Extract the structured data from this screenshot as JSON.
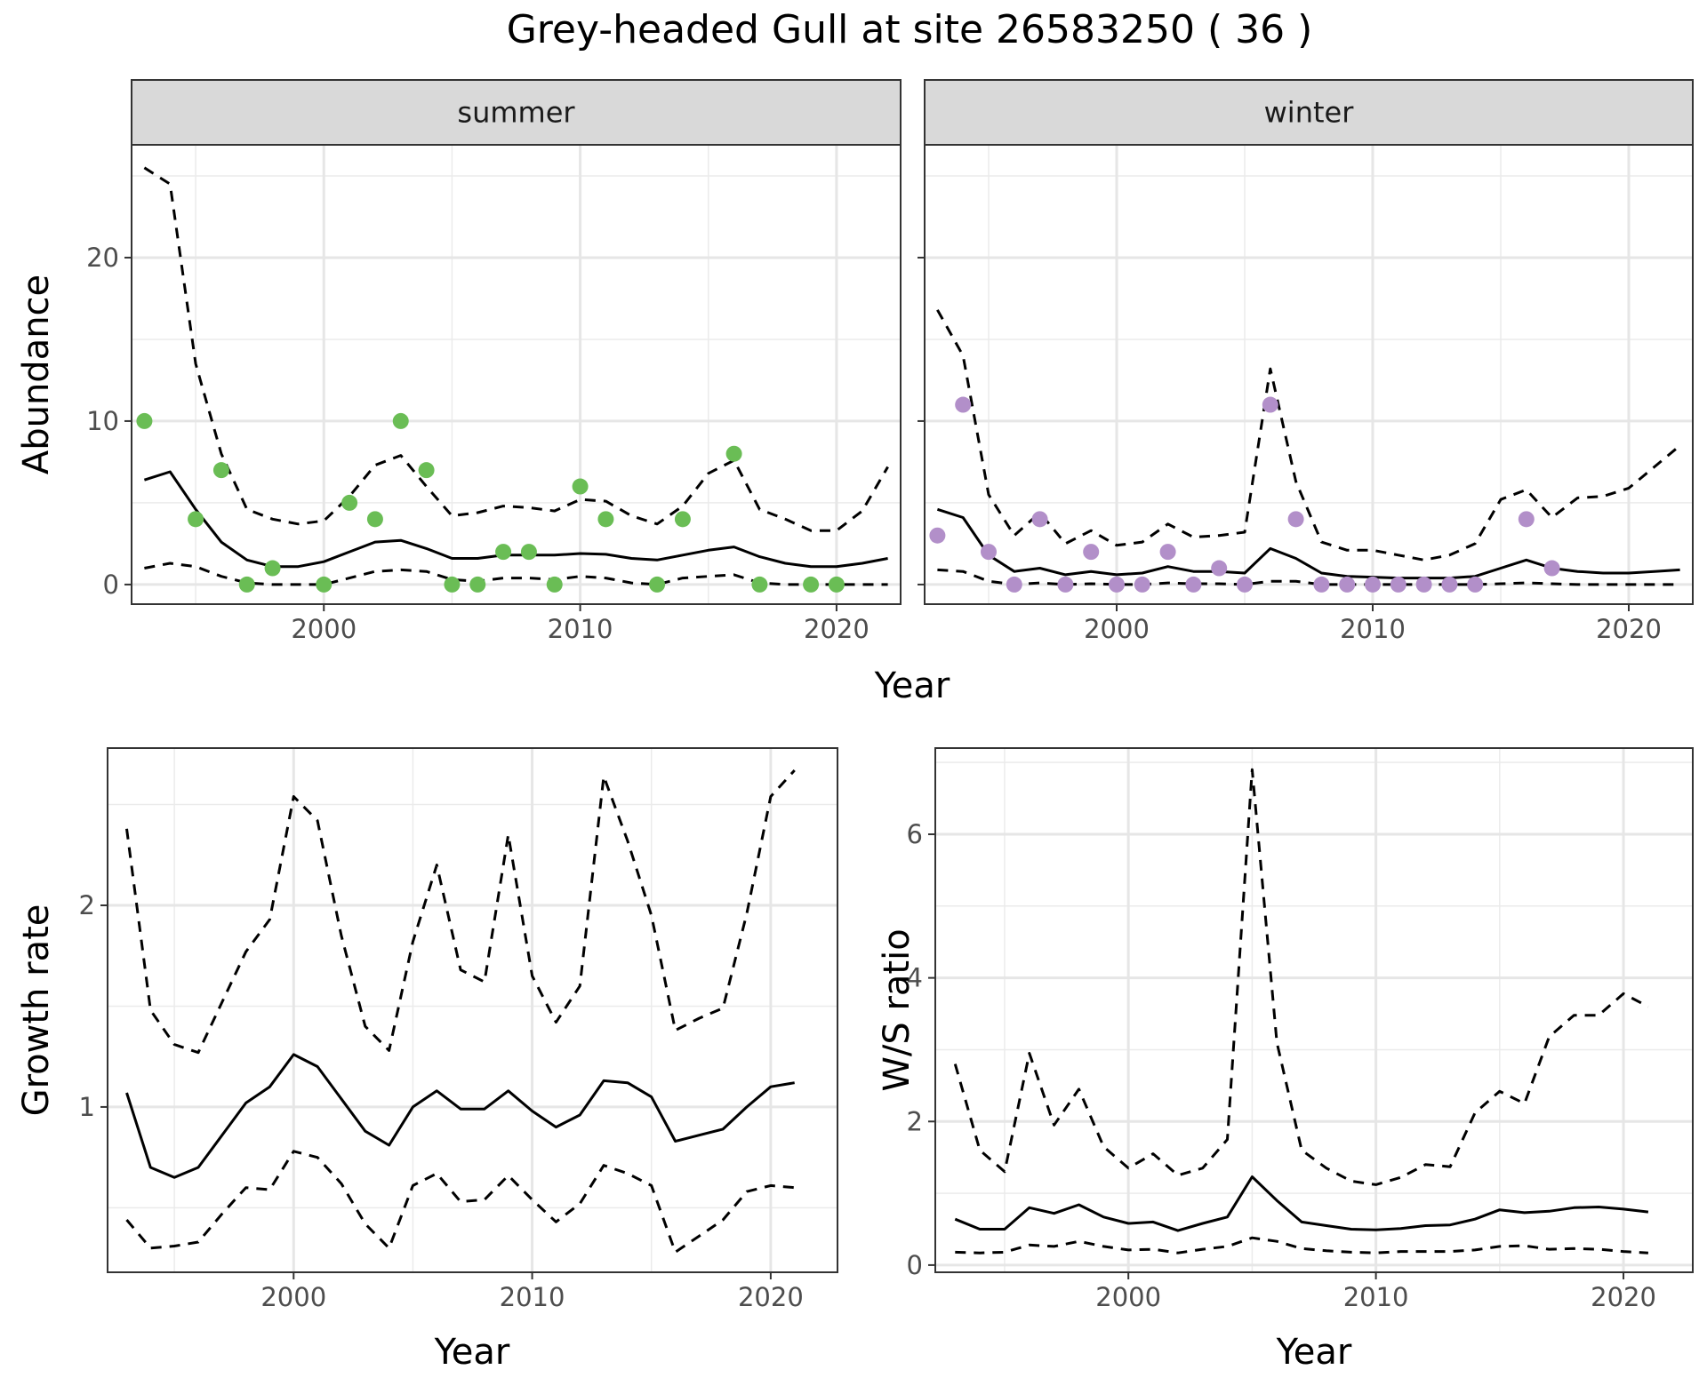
{
  "chart_data": [
    {
      "type": "line",
      "title": "Grey-headed Gull at site 26583250 ( 36 )",
      "facet": "summer",
      "xlabel": "Year",
      "ylabel": "Abundance",
      "xlim": [
        1992.5,
        2022.5
      ],
      "ylim": [
        -1.2,
        26.9
      ],
      "x_ticks": [
        2000,
        2010,
        2020
      ],
      "y_ticks": [
        0,
        10,
        20
      ],
      "grid": true,
      "series": [
        {
          "x": [
            1993,
            1994,
            1995,
            1996,
            1997,
            1998,
            1999,
            2000,
            2001,
            2002,
            2003,
            2004,
            2005,
            2006,
            2007,
            2008,
            2009,
            2010,
            2011,
            2012,
            2013,
            2014,
            2015,
            2016,
            2017,
            2018,
            2019,
            2020,
            2021,
            2022
          ],
          "values": [
            6.4,
            6.9,
            4.6,
            2.6,
            1.5,
            1.1,
            1.1,
            1.4,
            2.0,
            2.6,
            2.7,
            2.2,
            1.6,
            1.6,
            1.8,
            1.8,
            1.8,
            1.9,
            1.85,
            1.6,
            1.5,
            1.8,
            2.1,
            2.3,
            1.7,
            1.3,
            1.1,
            1.1,
            1.3,
            1.6
          ],
          "style": "solid"
        },
        {
          "x": [
            1993,
            1994,
            1995,
            1996,
            1997,
            1998,
            1999,
            2000,
            2001,
            2002,
            2003,
            2004,
            2005,
            2006,
            2007,
            2008,
            2009,
            2010,
            2011,
            2012,
            2013,
            2014,
            2015,
            2016,
            2017,
            2018,
            2019,
            2020,
            2021,
            2022
          ],
          "values": [
            25.5,
            24.5,
            13.5,
            8.0,
            4.6,
            4.0,
            3.7,
            3.9,
            5.4,
            7.3,
            7.9,
            6.0,
            4.2,
            4.4,
            4.8,
            4.7,
            4.5,
            5.2,
            5.1,
            4.2,
            3.7,
            4.8,
            6.8,
            7.6,
            4.6,
            4.0,
            3.3,
            3.3,
            4.5,
            7.2
          ],
          "style": "dashed"
        },
        {
          "x": [
            1993,
            1994,
            1995,
            1996,
            1997,
            1998,
            1999,
            2000,
            2001,
            2002,
            2003,
            2004,
            2005,
            2006,
            2007,
            2008,
            2009,
            2010,
            2011,
            2012,
            2013,
            2014,
            2015,
            2016,
            2017,
            2018,
            2019,
            2020,
            2021,
            2022
          ],
          "values": [
            1.0,
            1.3,
            1.1,
            0.5,
            0.1,
            0.0,
            0.0,
            0.0,
            0.4,
            0.8,
            0.9,
            0.8,
            0.3,
            0.2,
            0.4,
            0.4,
            0.3,
            0.5,
            0.4,
            0.1,
            0.0,
            0.4,
            0.5,
            0.6,
            0.1,
            0.0,
            0.0,
            0.0,
            0.0,
            0.0
          ],
          "style": "dashed"
        }
      ],
      "points": {
        "color": "#6abd55",
        "x": [
          1993,
          1995,
          1996,
          1997,
          1998,
          2000,
          2001,
          2002,
          2003,
          2004,
          2005,
          2006,
          2007,
          2008,
          2009,
          2010,
          2011,
          2013,
          2014,
          2016,
          2017,
          2019,
          2020
        ],
        "y": [
          10,
          4,
          7,
          0,
          1,
          0,
          5,
          4,
          10,
          7,
          0,
          0,
          2,
          2,
          0,
          6,
          4,
          0,
          4,
          8,
          0,
          0,
          0
        ]
      }
    },
    {
      "type": "line",
      "facet": "winter",
      "xlabel": "Year",
      "xlim": [
        1992.5,
        2022.5
      ],
      "ylim": [
        -1.2,
        26.9
      ],
      "x_ticks": [
        2000,
        2010,
        2020
      ],
      "grid": true,
      "series": [
        {
          "x": [
            1993,
            1994,
            1995,
            1996,
            1997,
            1998,
            1999,
            2000,
            2001,
            2002,
            2003,
            2004,
            2005,
            2006,
            2007,
            2008,
            2009,
            2010,
            2011,
            2012,
            2013,
            2014,
            2015,
            2016,
            2017,
            2018,
            2019,
            2020,
            2021,
            2022
          ],
          "values": [
            4.6,
            4.1,
            1.8,
            0.8,
            1.0,
            0.6,
            0.8,
            0.6,
            0.7,
            1.1,
            0.8,
            0.8,
            0.7,
            2.2,
            1.6,
            0.7,
            0.5,
            0.45,
            0.4,
            0.4,
            0.4,
            0.5,
            1.0,
            1.5,
            1.0,
            0.8,
            0.7,
            0.7,
            0.8,
            0.9
          ],
          "style": "solid"
        },
        {
          "x": [
            1993,
            1994,
            1995,
            1996,
            1997,
            1998,
            1999,
            2000,
            2001,
            2002,
            2003,
            2004,
            2005,
            2006,
            2007,
            2008,
            2009,
            2010,
            2011,
            2012,
            2013,
            2014,
            2015,
            2016,
            2017,
            2018,
            2019,
            2020,
            2021,
            2022
          ],
          "values": [
            16.8,
            14.0,
            5.5,
            3.0,
            4.4,
            2.5,
            3.3,
            2.4,
            2.6,
            3.7,
            2.9,
            3.0,
            3.2,
            13.2,
            6.3,
            2.6,
            2.1,
            2.1,
            1.8,
            1.5,
            1.8,
            2.5,
            5.2,
            5.8,
            4.1,
            5.3,
            5.4,
            5.9,
            7.2,
            8.5
          ],
          "style": "dashed"
        },
        {
          "x": [
            1993,
            1994,
            1995,
            1996,
            1997,
            1998,
            1999,
            2000,
            2001,
            2002,
            2003,
            2004,
            2005,
            2006,
            2007,
            2008,
            2009,
            2010,
            2011,
            2012,
            2013,
            2014,
            2015,
            2016,
            2017,
            2018,
            2019,
            2020,
            2021,
            2022
          ],
          "values": [
            0.9,
            0.8,
            0.2,
            0.0,
            0.1,
            0.0,
            0.05,
            0.0,
            0.0,
            0.1,
            0.05,
            0.05,
            0.0,
            0.2,
            0.2,
            0.0,
            0.0,
            0.0,
            0.0,
            0.0,
            0.0,
            0.0,
            0.05,
            0.1,
            0.05,
            0.0,
            0.0,
            0.0,
            0.0,
            0.0
          ],
          "style": "dashed"
        }
      ],
      "points": {
        "color": "#b28fc9",
        "x": [
          1993,
          1994,
          1995,
          1996,
          1997,
          1998,
          1999,
          2000,
          2001,
          2002,
          2003,
          2004,
          2005,
          2006,
          2007,
          2008,
          2009,
          2010,
          2011,
          2012,
          2013,
          2014,
          2016,
          2017
        ],
        "y": [
          3,
          11,
          2,
          0,
          4,
          0,
          2,
          0,
          0,
          2,
          0,
          1,
          0,
          11,
          4,
          0,
          0,
          0,
          0,
          0,
          0,
          0,
          4,
          1
        ]
      }
    },
    {
      "type": "line",
      "xlabel": "Year",
      "ylabel": "Growth rate",
      "xlim": [
        1992.2,
        2022.8
      ],
      "ylim": [
        0.18,
        2.78
      ],
      "x_ticks": [
        2000,
        2010,
        2020
      ],
      "y_ticks": [
        1,
        2
      ],
      "grid": true,
      "series": [
        {
          "x": [
            1993,
            1994,
            1995,
            1996,
            1997,
            1998,
            1999,
            2000,
            2001,
            2002,
            2003,
            2004,
            2005,
            2006,
            2007,
            2008,
            2009,
            2010,
            2011,
            2012,
            2013,
            2014,
            2015,
            2016,
            2017,
            2018,
            2019,
            2020,
            2021
          ],
          "values": [
            1.07,
            0.7,
            0.65,
            0.7,
            0.86,
            1.02,
            1.1,
            1.26,
            1.2,
            1.04,
            0.88,
            0.81,
            1.0,
            1.08,
            0.99,
            0.99,
            1.08,
            0.98,
            0.9,
            0.96,
            1.13,
            1.12,
            1.05,
            0.83,
            0.86,
            0.89,
            1.0,
            1.1,
            1.12
          ],
          "style": "solid"
        },
        {
          "x": [
            1993,
            1994,
            1995,
            1996,
            1997,
            1998,
            1999,
            2000,
            2001,
            2002,
            2003,
            2004,
            2005,
            2006,
            2007,
            2008,
            2009,
            2010,
            2011,
            2012,
            2013,
            2014,
            2015,
            2016,
            2017,
            2018,
            2019,
            2020,
            2021
          ],
          "values": [
            2.38,
            1.48,
            1.31,
            1.27,
            1.52,
            1.77,
            1.93,
            2.54,
            2.42,
            1.85,
            1.4,
            1.28,
            1.82,
            2.2,
            1.68,
            1.62,
            2.35,
            1.65,
            1.42,
            1.6,
            2.64,
            2.32,
            1.95,
            1.38,
            1.44,
            1.49,
            1.96,
            2.54,
            2.67
          ],
          "style": "dashed"
        },
        {
          "x": [
            1993,
            1994,
            1995,
            1996,
            1997,
            1998,
            1999,
            2000,
            2001,
            2002,
            2003,
            2004,
            2005,
            2006,
            2007,
            2008,
            2009,
            2010,
            2011,
            2012,
            2013,
            2014,
            2015,
            2016,
            2017,
            2018,
            2019,
            2020,
            2021
          ],
          "values": [
            0.44,
            0.3,
            0.31,
            0.33,
            0.47,
            0.6,
            0.59,
            0.78,
            0.75,
            0.62,
            0.42,
            0.3,
            0.61,
            0.67,
            0.53,
            0.54,
            0.66,
            0.54,
            0.43,
            0.52,
            0.71,
            0.67,
            0.61,
            0.28,
            0.36,
            0.44,
            0.58,
            0.61,
            0.6
          ],
          "style": "dashed"
        }
      ]
    },
    {
      "type": "line",
      "xlabel": "Year",
      "ylabel": "W/S ratio",
      "xlim": [
        1992.2,
        2022.8
      ],
      "ylim": [
        -0.1,
        7.2
      ],
      "x_ticks": [
        2000,
        2010,
        2020
      ],
      "y_ticks": [
        0,
        2,
        4,
        6
      ],
      "grid": true,
      "series": [
        {
          "x": [
            1993,
            1994,
            1995,
            1996,
            1997,
            1998,
            1999,
            2000,
            2001,
            2002,
            2003,
            2004,
            2005,
            2006,
            2007,
            2008,
            2009,
            2010,
            2011,
            2012,
            2013,
            2014,
            2015,
            2016,
            2017,
            2018,
            2019,
            2020,
            2021
          ],
          "values": [
            0.64,
            0.5,
            0.5,
            0.8,
            0.72,
            0.84,
            0.67,
            0.58,
            0.6,
            0.48,
            0.58,
            0.67,
            1.23,
            0.9,
            0.6,
            0.55,
            0.5,
            0.49,
            0.51,
            0.55,
            0.56,
            0.64,
            0.77,
            0.73,
            0.75,
            0.8,
            0.81,
            0.78,
            0.74
          ],
          "style": "solid"
        },
        {
          "x": [
            1993,
            1994,
            1995,
            1996,
            1997,
            1998,
            1999,
            2000,
            2001,
            2002,
            2003,
            2004,
            2005,
            2006,
            2007,
            2008,
            2009,
            2010,
            2011,
            2012,
            2013,
            2014,
            2015,
            2016,
            2017,
            2018,
            2019,
            2020,
            2021
          ],
          "values": [
            2.8,
            1.6,
            1.3,
            2.95,
            1.95,
            2.45,
            1.65,
            1.35,
            1.55,
            1.25,
            1.35,
            1.75,
            6.9,
            3.1,
            1.6,
            1.35,
            1.17,
            1.12,
            1.22,
            1.4,
            1.37,
            2.12,
            2.42,
            2.25,
            3.18,
            3.48,
            3.48,
            3.78,
            3.6
          ],
          "style": "dashed"
        },
        {
          "x": [
            1993,
            1994,
            1995,
            1996,
            1997,
            1998,
            1999,
            2000,
            2001,
            2002,
            2003,
            2004,
            2005,
            2006,
            2007,
            2008,
            2009,
            2010,
            2011,
            2012,
            2013,
            2014,
            2015,
            2016,
            2017,
            2018,
            2019,
            2020,
            2021
          ],
          "values": [
            0.18,
            0.17,
            0.18,
            0.28,
            0.26,
            0.33,
            0.26,
            0.21,
            0.22,
            0.17,
            0.22,
            0.26,
            0.38,
            0.33,
            0.23,
            0.2,
            0.18,
            0.17,
            0.19,
            0.19,
            0.19,
            0.21,
            0.26,
            0.27,
            0.22,
            0.23,
            0.22,
            0.19,
            0.17
          ],
          "style": "dashed"
        }
      ]
    }
  ]
}
